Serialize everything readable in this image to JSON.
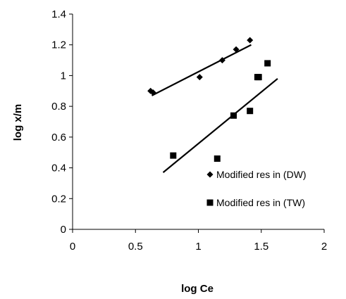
{
  "chart_data": {
    "type": "scatter",
    "title": "",
    "xlabel": "log Ce",
    "ylabel": "log x/m",
    "xlim": [
      0,
      2
    ],
    "ylim": [
      0,
      1.4
    ],
    "xticks": [
      "0",
      "0.5",
      "1",
      "1.5",
      "2"
    ],
    "yticks": [
      "0",
      "0.2",
      "0.4",
      "0.6",
      "0.8",
      "1",
      "1.2",
      "1.4"
    ],
    "grid": false,
    "legend_position": "bottom-right",
    "series": [
      {
        "name": "Modified res in (DW)",
        "marker": "diamond",
        "color": "#000000",
        "points": [
          {
            "x": 0.62,
            "y": 0.9
          },
          {
            "x": 0.64,
            "y": 0.89
          },
          {
            "x": 1.01,
            "y": 0.99
          },
          {
            "x": 1.19,
            "y": 1.1
          },
          {
            "x": 1.3,
            "y": 1.17
          },
          {
            "x": 1.41,
            "y": 1.23
          }
        ],
        "trendline": {
          "x": [
            0.63,
            1.42
          ],
          "y": [
            0.87,
            1.2
          ]
        }
      },
      {
        "name": "Modified res in (TW)",
        "marker": "square",
        "color": "#000000",
        "points": [
          {
            "x": 0.8,
            "y": 0.48
          },
          {
            "x": 1.15,
            "y": 0.46
          },
          {
            "x": 1.28,
            "y": 0.74
          },
          {
            "x": 1.41,
            "y": 0.77
          },
          {
            "x": 1.47,
            "y": 0.99
          },
          {
            "x": 1.48,
            "y": 0.99
          },
          {
            "x": 1.55,
            "y": 1.08
          }
        ],
        "trendline": {
          "x": [
            0.72,
            1.63
          ],
          "y": [
            0.37,
            0.98
          ]
        }
      }
    ]
  }
}
